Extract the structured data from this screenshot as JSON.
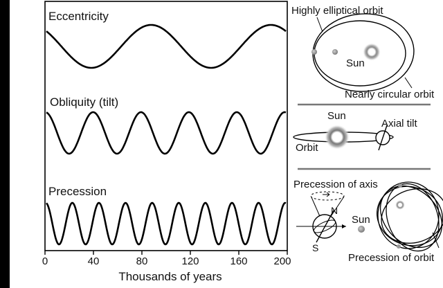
{
  "colors": {
    "paper": "#ffffff",
    "ink": "#111111",
    "border": "#000000",
    "divider": "#777777",
    "planet": "#9a9a9a"
  },
  "left_panel": {
    "panels": [
      {
        "id": "eccentricity",
        "label": "Eccentricity",
        "cycles_over_range": 2
      },
      {
        "id": "obliquity",
        "label": "Obliquity (tilt)",
        "cycles_over_range": 5
      },
      {
        "id": "precession",
        "label": "Precession",
        "cycles_over_range": 9
      }
    ],
    "x_ticks": [
      "0",
      "40",
      "80",
      "120",
      "160",
      "200"
    ],
    "x_axis_label": "Thousands of years"
  },
  "right_panel": {
    "eccentricity": {
      "elliptical_label": "Highly elliptical orbit",
      "sun_label": "Sun",
      "circular_label": "Nearly circular orbit"
    },
    "tilt": {
      "sun_label": "Sun",
      "tilt_label": "Axial tilt",
      "orbit_label": "Orbit"
    },
    "precession": {
      "axis_label": "Precession of axis",
      "north_label": "N",
      "south_label": "S",
      "sun_label": "Sun",
      "orbit_label": "Precession of orbit"
    }
  }
}
